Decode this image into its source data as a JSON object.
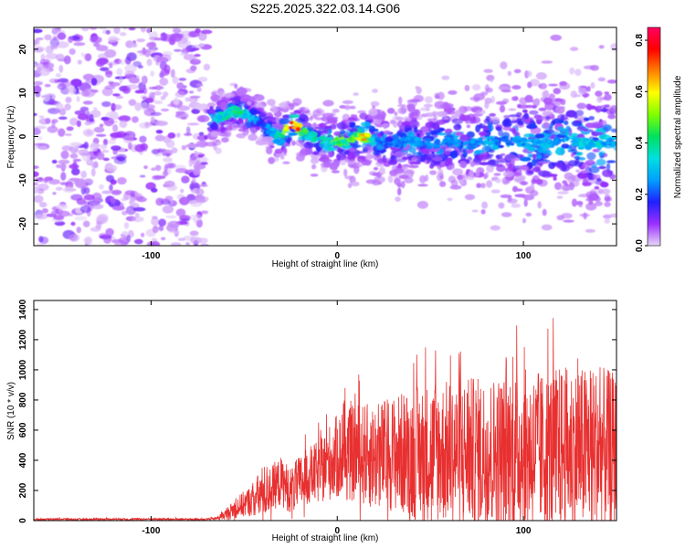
{
  "figure_title": "S225.2025.322.03.14.G06",
  "chart_data": [
    {
      "type": "heatmap",
      "title": "S225.2025.322.03.14.G06",
      "xlabel": "Height of straight line (km)",
      "ylabel": "Frequency (Hz)",
      "xlim": [
        -163,
        150
      ],
      "ylim": [
        -25,
        25
      ],
      "x_ticks": [
        -100,
        0,
        100
      ],
      "y_ticks": [
        -20,
        -10,
        0,
        10,
        20
      ],
      "grid": false,
      "colorbar": {
        "label": "Normalized spectral amplitude",
        "range": [
          0.0,
          0.85
        ],
        "ticks": [
          0.0,
          0.2,
          0.4,
          0.6,
          0.8
        ],
        "colormap": [
          "#e8d8f8",
          "#9b30ff",
          "#2020ff",
          "#00a0ff",
          "#00e0e0",
          "#00e060",
          "#80ff00",
          "#ffff00",
          "#ff8000",
          "#ff0000",
          "#ff0060"
        ]
      },
      "ridge": {
        "name": "",
        "x": [
          -64,
          -60,
          -55,
          -50,
          -45,
          -40,
          -35,
          -30,
          -25,
          -20,
          -15,
          -10,
          -5,
          0,
          5,
          10,
          15,
          20,
          30,
          40,
          50,
          60,
          70,
          80,
          90,
          100,
          110,
          120,
          130,
          140,
          148
        ],
        "y": [
          4,
          5,
          6,
          5,
          4,
          3,
          1,
          0,
          3,
          2,
          0,
          -1,
          -1,
          -1,
          -1,
          0,
          0,
          -1,
          -2,
          -1,
          -2,
          -1,
          -2,
          -1,
          -1,
          -1,
          -2,
          -1,
          -1,
          -2,
          -1
        ],
        "peak_amplitude": [
          0.35,
          0.4,
          0.45,
          0.4,
          0.3,
          0.2,
          0.35,
          0.45,
          0.8,
          0.7,
          0.4,
          0.4,
          0.45,
          0.5,
          0.5,
          0.55,
          0.7,
          0.3,
          0.25,
          0.3,
          0.25,
          0.3,
          0.25,
          0.3,
          0.25,
          0.3,
          0.3,
          0.3,
          0.35,
          0.35,
          0.3
        ]
      },
      "noise_floor_amplitude": 0.08
    },
    {
      "type": "line",
      "title": "",
      "xlabel": "Height of straight line (km)",
      "ylabel": "SNR (10 * v/v)",
      "xlim": [
        -163,
        150
      ],
      "ylim": [
        0,
        1460
      ],
      "x_ticks": [
        -100,
        0,
        100
      ],
      "y_ticks": [
        0,
        200,
        400,
        600,
        800,
        1000,
        1200,
        1400
      ],
      "grid": false,
      "series": [
        {
          "name": "",
          "color": "#e83030",
          "x": [
            -163,
            -150,
            -140,
            -130,
            -120,
            -110,
            -100,
            -90,
            -80,
            -70,
            -65,
            -60,
            -55,
            -50,
            -45,
            -40,
            -35,
            -30,
            -25,
            -20,
            -15,
            -10,
            -5,
            0,
            5,
            10,
            20,
            30,
            40,
            50,
            60,
            70,
            80,
            90,
            100,
            110,
            120,
            130,
            140,
            150
          ],
          "values": [
            8,
            10,
            8,
            9,
            10,
            9,
            10,
            9,
            8,
            9,
            15,
            40,
            80,
            110,
            140,
            180,
            220,
            260,
            200,
            250,
            300,
            320,
            380,
            420,
            430,
            450,
            420,
            450,
            440,
            460,
            450,
            460,
            450,
            460,
            470,
            460,
            480,
            470,
            480,
            460
          ],
          "spread": [
            12,
            12,
            12,
            12,
            12,
            12,
            12,
            12,
            12,
            12,
            20,
            60,
            120,
            160,
            200,
            350,
            280,
            300,
            280,
            340,
            350,
            380,
            450,
            520,
            560,
            600,
            650,
            700,
            800,
            850,
            880,
            900,
            920,
            950,
            980,
            960,
            1000,
            1000,
            1000,
            950
          ]
        }
      ]
    }
  ]
}
